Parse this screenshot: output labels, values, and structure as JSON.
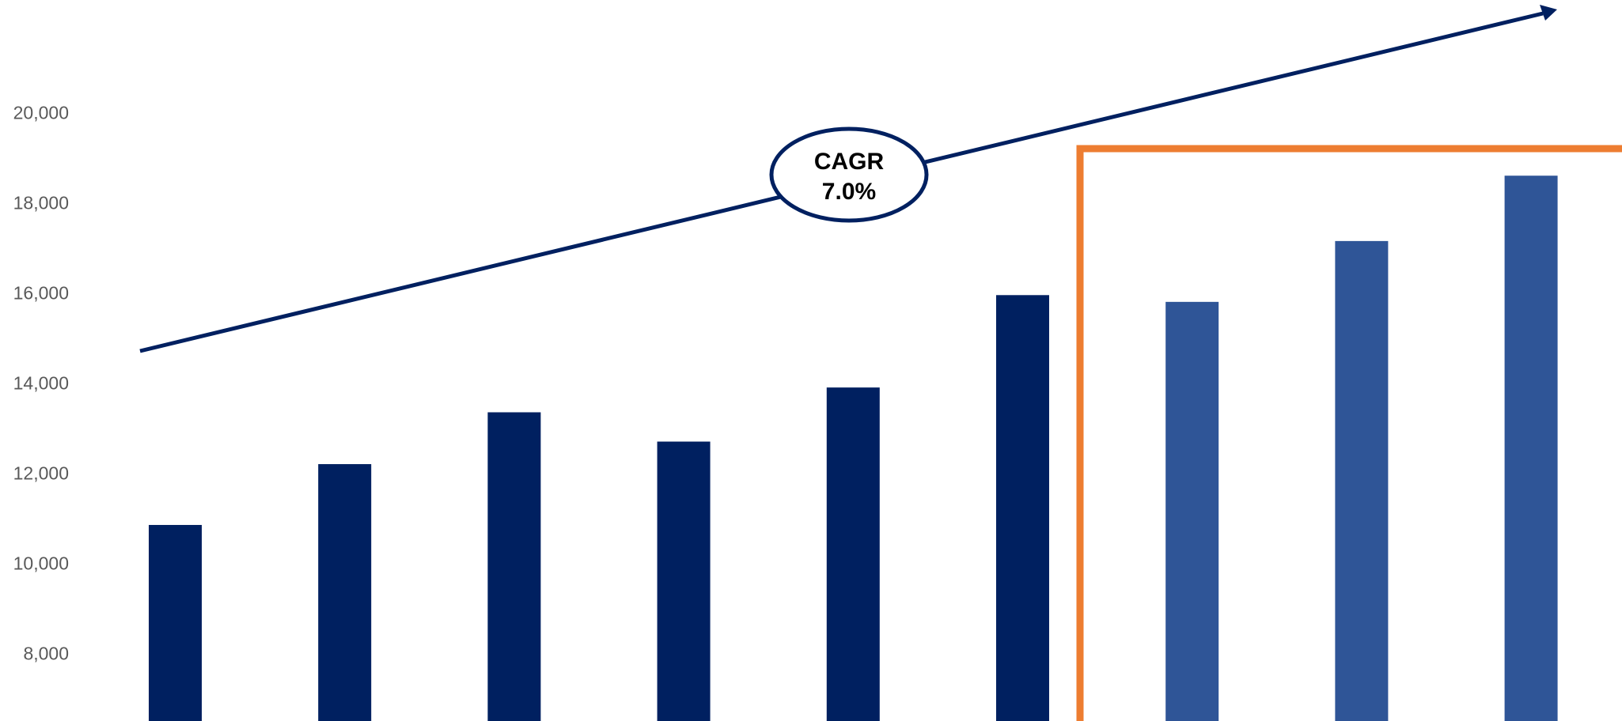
{
  "colors": {
    "actual_bar": "#002060",
    "forecast_bar": "#2F5597",
    "trend_arrow": "#002060",
    "forecast_box": "#ED7D31",
    "tick_text": "#595959"
  },
  "chart_data": {
    "type": "bar",
    "title": "",
    "xlabel": "",
    "ylabel": "",
    "ylim": [
      6500,
      22200
    ],
    "yticks": [
      8000,
      10000,
      12000,
      14000,
      16000,
      18000,
      20000
    ],
    "ytick_labels": [
      "8,000",
      "10,000",
      "12,000",
      "14,000",
      "16,000",
      "18,000",
      "20,000"
    ],
    "grid": false,
    "series": [
      {
        "values": [
          10850,
          12200,
          13350,
          12700,
          13900,
          15950,
          15800,
          17150,
          18600
        ],
        "forecast_from_index": 6
      }
    ],
    "annotations": {
      "cagr_title": "CAGR",
      "cagr_value": "7.0%",
      "trend_arrow": "rising arrow across the chart",
      "forecast_box": "orange outline around the last three bars"
    }
  }
}
